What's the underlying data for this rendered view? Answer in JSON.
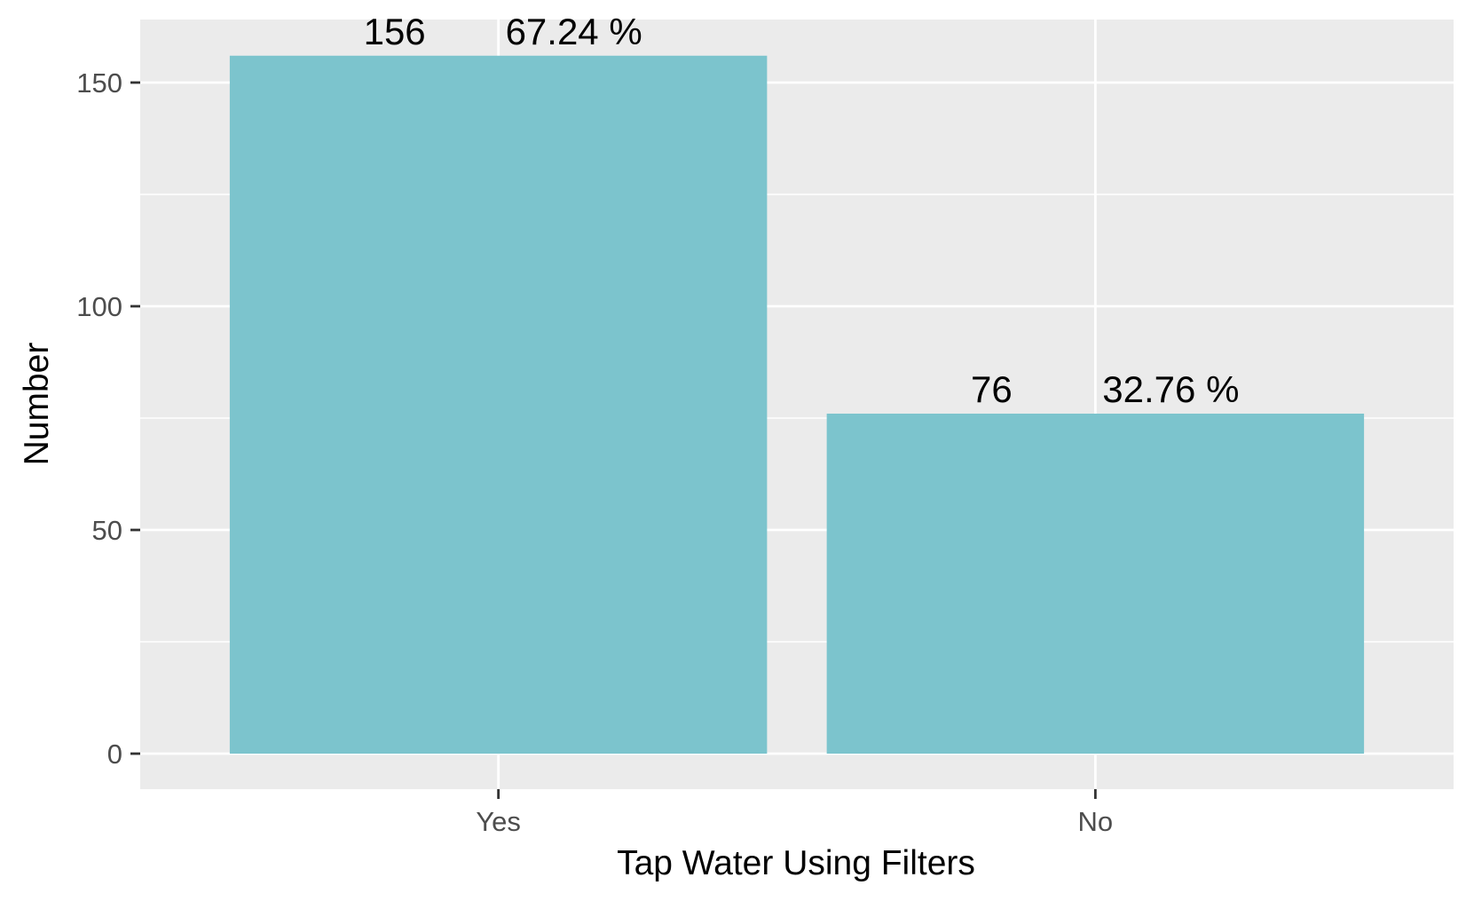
{
  "chart_data": {
    "type": "bar",
    "title": "",
    "xlabel": "Tap Water Using Filters",
    "ylabel": "Number",
    "categories": [
      "Yes",
      "No"
    ],
    "values": [
      156,
      76
    ],
    "labels": [
      {
        "count": "156",
        "percent": "67.24 %"
      },
      {
        "count": "76",
        "percent": "32.76 %"
      }
    ],
    "ylim": [
      0,
      163
    ],
    "yticks": [
      0,
      50,
      100,
      150
    ],
    "ytick_labels": [
      "0",
      "50",
      "100",
      "150"
    ],
    "grid": true,
    "colors": {
      "bar": "#7CC4CD",
      "panel": "#EBEBEB",
      "grid": "#FFFFFF",
      "tick": "#333333"
    }
  }
}
